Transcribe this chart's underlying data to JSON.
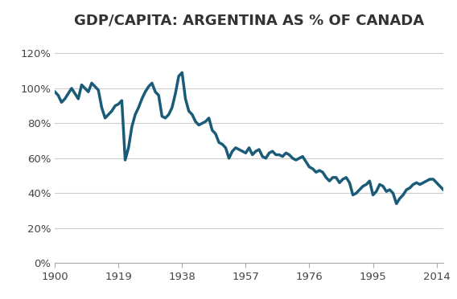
{
  "title": "GDP/CAPITA: ARGENTINA AS % OF CANADA",
  "line_color": "#1a5c78",
  "background_color": "#ffffff",
  "grid_color": "#cccccc",
  "xlim": [
    1900,
    2016
  ],
  "ylim": [
    0,
    1.3
  ],
  "xticks": [
    1900,
    1919,
    1938,
    1957,
    1976,
    1995,
    2014
  ],
  "yticks": [
    0,
    0.2,
    0.4,
    0.6,
    0.8,
    1.0,
    1.2
  ],
  "line_width": 2.5,
  "title_fontsize": 13,
  "years": [
    1900,
    1901,
    1902,
    1903,
    1904,
    1905,
    1906,
    1907,
    1908,
    1909,
    1910,
    1911,
    1912,
    1913,
    1914,
    1915,
    1916,
    1917,
    1918,
    1919,
    1920,
    1921,
    1922,
    1923,
    1924,
    1925,
    1926,
    1927,
    1928,
    1929,
    1930,
    1931,
    1932,
    1933,
    1934,
    1935,
    1936,
    1937,
    1938,
    1939,
    1940,
    1941,
    1942,
    1943,
    1944,
    1945,
    1946,
    1947,
    1948,
    1949,
    1950,
    1951,
    1952,
    1953,
    1954,
    1955,
    1956,
    1957,
    1958,
    1959,
    1960,
    1961,
    1962,
    1963,
    1964,
    1965,
    1966,
    1967,
    1968,
    1969,
    1970,
    1971,
    1972,
    1973,
    1974,
    1975,
    1976,
    1977,
    1978,
    1979,
    1980,
    1981,
    1982,
    1983,
    1984,
    1985,
    1986,
    1987,
    1988,
    1989,
    1990,
    1991,
    1992,
    1993,
    1994,
    1995,
    1996,
    1997,
    1998,
    1999,
    2000,
    2001,
    2002,
    2003,
    2004,
    2005,
    2006,
    2007,
    2008,
    2009,
    2010,
    2011,
    2012,
    2013,
    2014,
    2015,
    2016
  ],
  "values": [
    0.98,
    0.96,
    0.92,
    0.94,
    0.97,
    1.0,
    0.97,
    0.94,
    1.02,
    1.0,
    0.98,
    1.03,
    1.01,
    0.99,
    0.89,
    0.83,
    0.85,
    0.87,
    0.9,
    0.91,
    0.93,
    0.59,
    0.66,
    0.78,
    0.85,
    0.89,
    0.94,
    0.98,
    1.01,
    1.03,
    0.98,
    0.96,
    0.84,
    0.83,
    0.85,
    0.89,
    0.97,
    1.07,
    1.09,
    0.94,
    0.87,
    0.85,
    0.81,
    0.79,
    0.8,
    0.81,
    0.83,
    0.76,
    0.74,
    0.69,
    0.68,
    0.66,
    0.6,
    0.64,
    0.66,
    0.65,
    0.64,
    0.63,
    0.66,
    0.62,
    0.64,
    0.65,
    0.61,
    0.6,
    0.63,
    0.64,
    0.62,
    0.62,
    0.61,
    0.63,
    0.62,
    0.6,
    0.59,
    0.6,
    0.61,
    0.58,
    0.55,
    0.54,
    0.52,
    0.53,
    0.52,
    0.49,
    0.47,
    0.49,
    0.49,
    0.46,
    0.48,
    0.49,
    0.46,
    0.39,
    0.4,
    0.42,
    0.44,
    0.45,
    0.47,
    0.39,
    0.41,
    0.45,
    0.44,
    0.41,
    0.42,
    0.4,
    0.34,
    0.37,
    0.39,
    0.42,
    0.43,
    0.45,
    0.46,
    0.45,
    0.46,
    0.47,
    0.48,
    0.48,
    0.46,
    0.44,
    0.42
  ]
}
